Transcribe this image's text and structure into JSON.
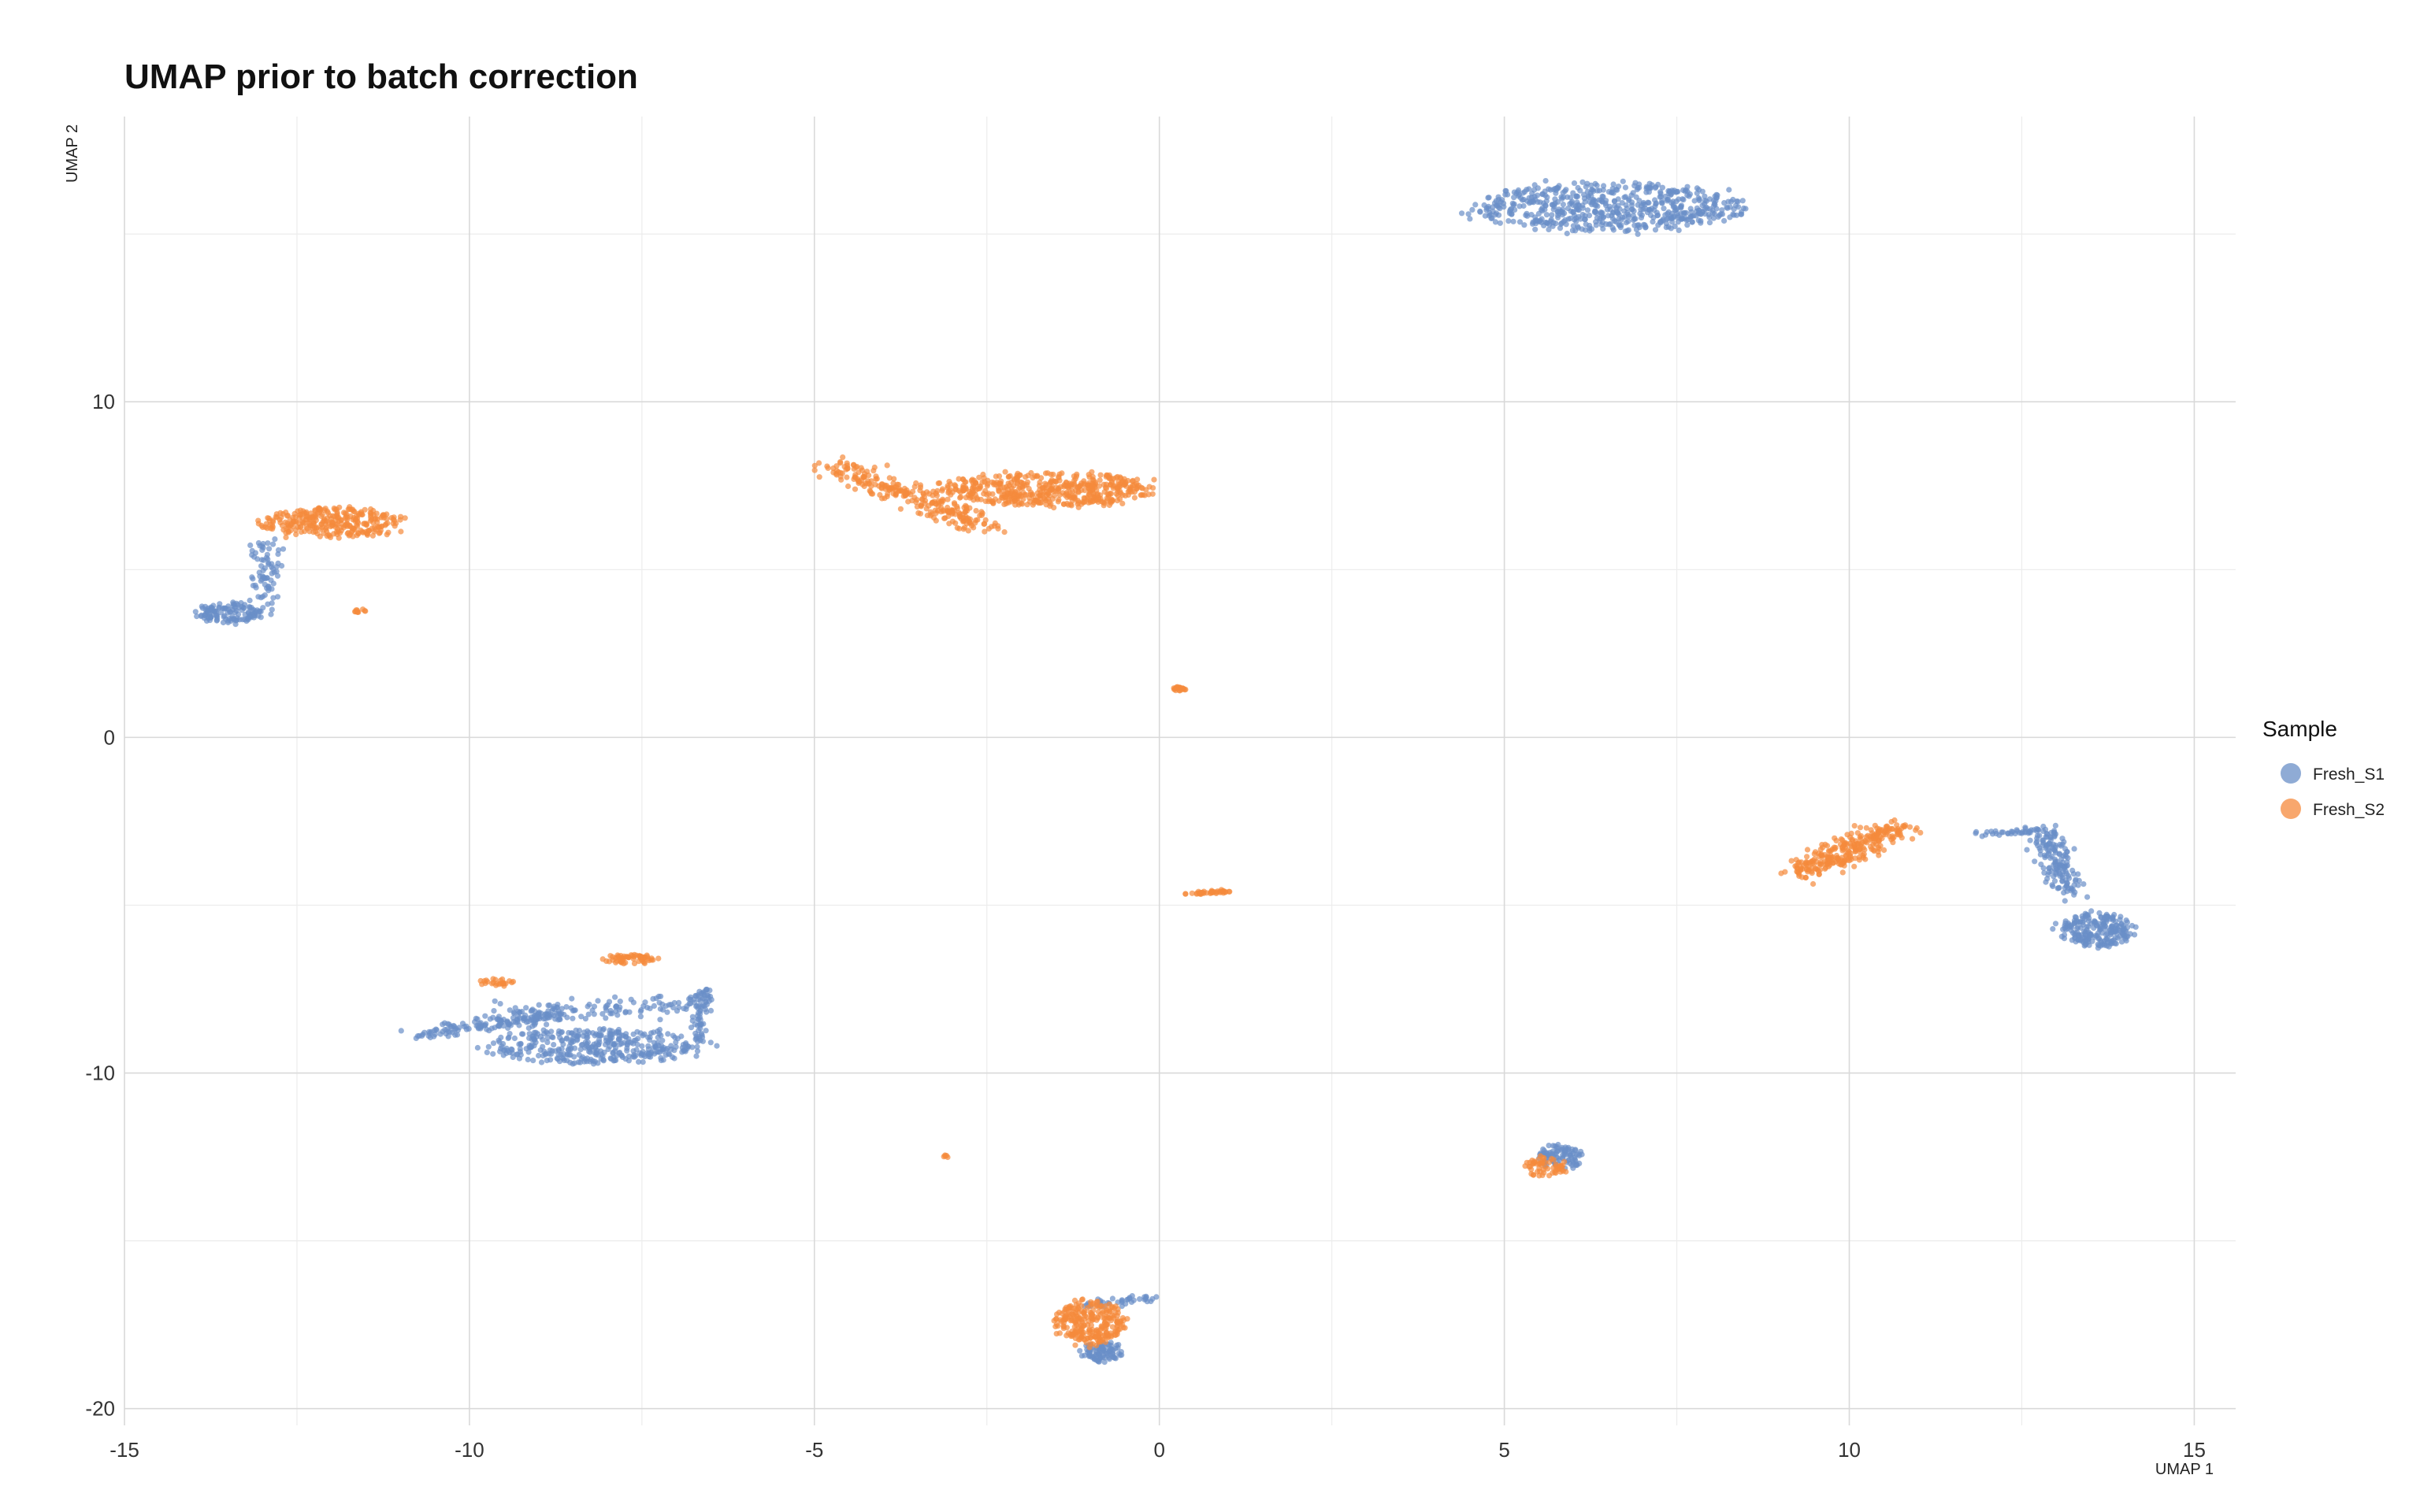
{
  "chart_data": {
    "type": "scatter",
    "title": "UMAP prior to batch correction",
    "xlabel": "UMAP 1",
    "ylabel": "UMAP 2",
    "xlim": [
      -15,
      15.6
    ],
    "ylim": [
      -20.5,
      18.5
    ],
    "x_ticks": [
      -15,
      -10,
      -5,
      0,
      5,
      10,
      15
    ],
    "y_ticks": [
      -20,
      -10,
      0,
      10
    ],
    "grid": true,
    "legend": {
      "title": "Sample",
      "placement": "right",
      "entries": [
        {
          "label": "Fresh_S1",
          "color": "#6a8fc7"
        },
        {
          "label": "Fresh_S2",
          "color": "#f58a3c"
        }
      ]
    },
    "series": [
      {
        "name": "Fresh_S1",
        "color": "#6a8fc7",
        "clusters": [
          {
            "type": "ellipse",
            "cx": 6.5,
            "cy": 15.8,
            "rx": 1.9,
            "ry": 0.7,
            "n": 600
          },
          {
            "type": "ellipse",
            "cx": -13.5,
            "cy": 3.7,
            "rx": 0.45,
            "ry": 0.3,
            "n": 120
          },
          {
            "type": "line",
            "x1": -13.0,
            "y1": 3.6,
            "x2": -12.9,
            "y2": 5.8,
            "w": 0.25,
            "n": 80
          },
          {
            "type": "ellipse",
            "cx": -8.2,
            "cy": -9.2,
            "rx": 1.6,
            "ry": 0.5,
            "n": 380
          },
          {
            "type": "line",
            "x1": -10.8,
            "y1": -8.9,
            "x2": -8.7,
            "y2": -8.2,
            "w": 0.25,
            "n": 150
          },
          {
            "type": "line",
            "x1": -9.5,
            "y1": -8.3,
            "x2": -6.6,
            "y2": -7.9,
            "w": 0.3,
            "n": 120
          },
          {
            "type": "line",
            "x1": -6.6,
            "y1": -7.4,
            "x2": -6.7,
            "y2": -9.0,
            "w": 0.12,
            "n": 60
          },
          {
            "type": "ellipse",
            "cx": -0.85,
            "cy": -18.3,
            "rx": 0.3,
            "ry": 0.3,
            "n": 90
          },
          {
            "type": "line",
            "x1": -1.1,
            "y1": -16.9,
            "x2": -0.1,
            "y2": -16.7,
            "w": 0.12,
            "n": 40
          },
          {
            "type": "ellipse",
            "cx": 5.8,
            "cy": -12.5,
            "rx": 0.35,
            "ry": 0.35,
            "n": 90
          },
          {
            "type": "line",
            "x1": 12.8,
            "y1": -2.7,
            "x2": 13.2,
            "y2": -4.6,
            "w": 0.25,
            "n": 160
          },
          {
            "type": "ellipse",
            "cx": 13.6,
            "cy": -5.7,
            "rx": 0.55,
            "ry": 0.5,
            "n": 220
          },
          {
            "type": "line",
            "x1": 11.8,
            "y1": -2.9,
            "x2": 12.7,
            "y2": -2.8,
            "w": 0.08,
            "n": 30
          }
        ]
      },
      {
        "name": "Fresh_S2",
        "color": "#f58a3c",
        "clusters": [
          {
            "type": "ellipse",
            "cx": -12.0,
            "cy": 6.4,
            "rx": 1.0,
            "ry": 0.45,
            "n": 300
          },
          {
            "type": "ellipse",
            "cx": -11.6,
            "cy": 3.75,
            "rx": 0.1,
            "ry": 0.08,
            "n": 10
          },
          {
            "type": "ellipse",
            "cx": -1.6,
            "cy": 7.4,
            "rx": 1.5,
            "ry": 0.5,
            "n": 500
          },
          {
            "type": "line",
            "x1": -4.7,
            "y1": 8.1,
            "x2": -2.5,
            "y2": 6.3,
            "w": 0.3,
            "n": 260
          },
          {
            "type": "ellipse",
            "cx": 0.3,
            "cy": 1.45,
            "rx": 0.12,
            "ry": 0.06,
            "n": 20
          },
          {
            "type": "line",
            "x1": 0.4,
            "y1": -4.65,
            "x2": 1.0,
            "y2": -4.6,
            "w": 0.05,
            "n": 40
          },
          {
            "type": "ellipse",
            "cx": -7.7,
            "cy": -6.6,
            "rx": 0.4,
            "ry": 0.15,
            "n": 60
          },
          {
            "type": "ellipse",
            "cx": -9.6,
            "cy": -7.3,
            "rx": 0.25,
            "ry": 0.12,
            "n": 25
          },
          {
            "type": "ellipse",
            "cx": -3.1,
            "cy": -12.5,
            "rx": 0.05,
            "ry": 0.05,
            "n": 5
          },
          {
            "type": "ellipse",
            "cx": -1.0,
            "cy": -17.4,
            "rx": 0.5,
            "ry": 0.65,
            "n": 260
          },
          {
            "type": "line",
            "x1": 9.3,
            "y1": -4.0,
            "x2": 10.7,
            "y2": -2.7,
            "w": 0.35,
            "n": 280
          },
          {
            "type": "ellipse",
            "cx": 5.6,
            "cy": -12.8,
            "rx": 0.3,
            "ry": 0.3,
            "n": 60
          }
        ]
      }
    ]
  }
}
